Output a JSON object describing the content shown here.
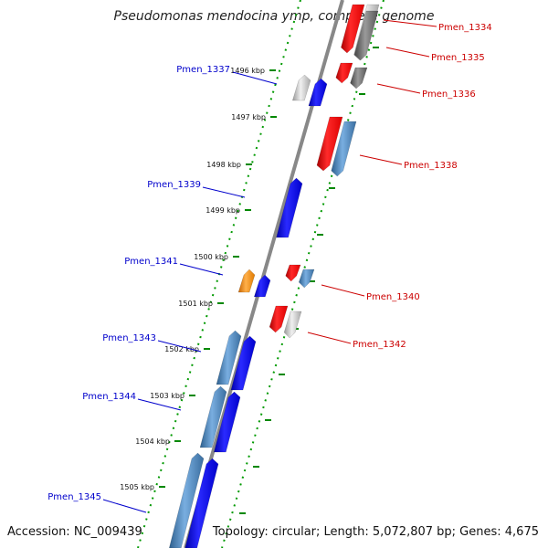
{
  "title": "Pseudomonas mendocina ymp, complete genome",
  "footer": {
    "accession": "Accession: NC_009439",
    "topology": "Topology: circular; Length: 5,072,807 bp; Genes: 4,675"
  },
  "colors": {
    "forward_label": "#0000cc",
    "reverse_label": "#cc0000",
    "backbone": "#888888",
    "dots": "#009900"
  },
  "ticks": [
    "1496 kbp",
    "1497 kbp",
    "1498 kbp",
    "1499 kbp",
    "1500 kbp",
    "1501 kbp",
    "1502 kbp",
    "1503 kbp",
    "1504 kbp",
    "1505 kbp"
  ],
  "genes": [
    {
      "label": "Pmen_1334",
      "strand": "reverse"
    },
    {
      "label": "Pmen_1335",
      "strand": "reverse"
    },
    {
      "label": "Pmen_1336",
      "strand": "reverse"
    },
    {
      "label": "Pmen_1337",
      "strand": "forward"
    },
    {
      "label": "Pmen_1338",
      "strand": "reverse"
    },
    {
      "label": "Pmen_1339",
      "strand": "forward"
    },
    {
      "label": "Pmen_1340",
      "strand": "reverse"
    },
    {
      "label": "Pmen_1341",
      "strand": "forward"
    },
    {
      "label": "Pmen_1342",
      "strand": "reverse"
    },
    {
      "label": "Pmen_1343",
      "strand": "forward"
    },
    {
      "label": "Pmen_1344",
      "strand": "forward"
    },
    {
      "label": "Pmen_1345",
      "strand": "forward"
    }
  ]
}
